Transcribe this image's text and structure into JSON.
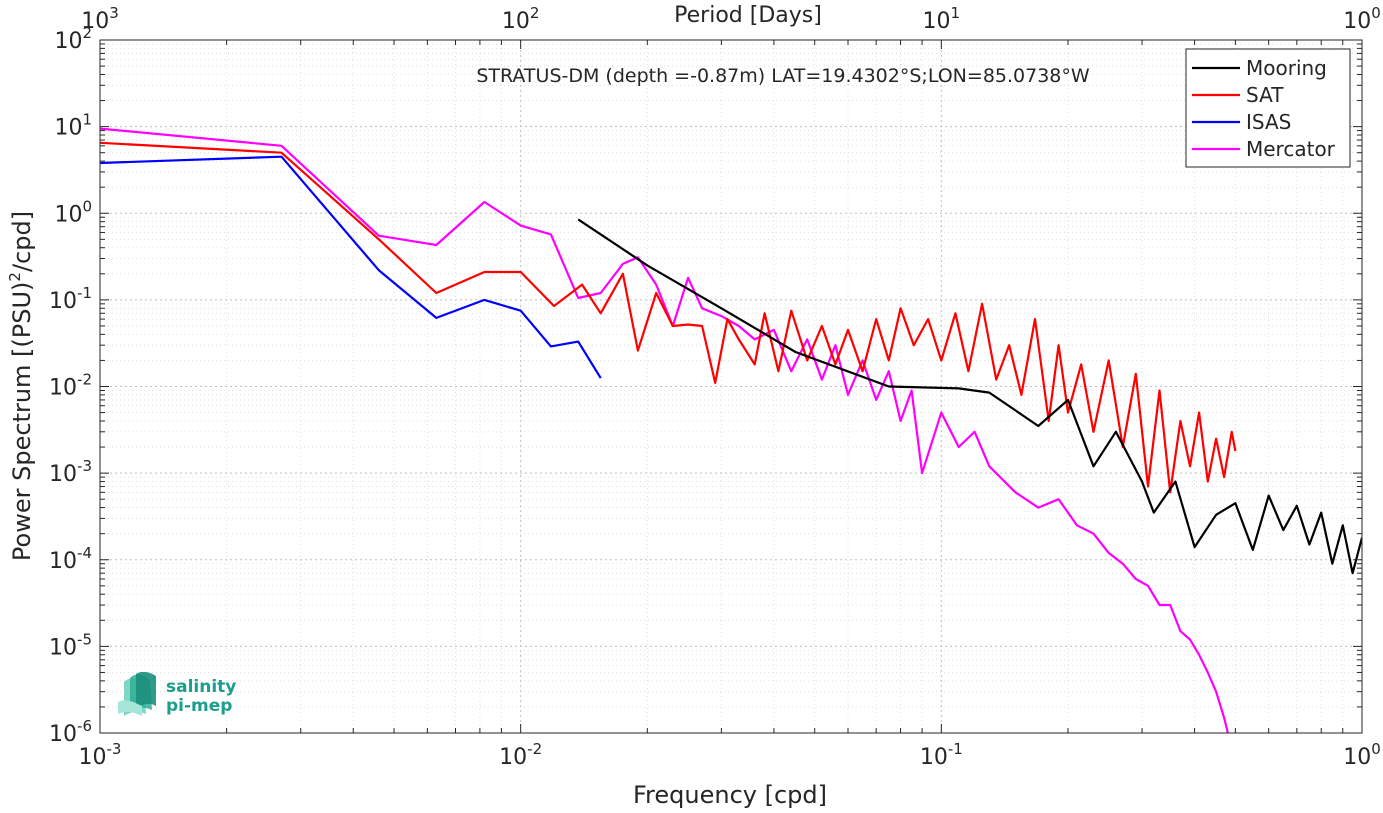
{
  "chart_data": {
    "type": "line",
    "title": "STRATUS-DM (depth =-0.87m) LAT=19.4302°S;LON=85.0738°W",
    "xlabel": "Frequency [cpd]",
    "ylabel_main": "Power Spectrum [(PSU)",
    "ylabel_sup": "2",
    "ylabel_tail": "/cpd]",
    "top_xlabel": "Period [Days]",
    "x_scale": "log",
    "y_scale": "log",
    "xlim": [
      0.001,
      1
    ],
    "ylim": [
      1e-06,
      100
    ],
    "grid": true,
    "legend_position": "top-right",
    "x_ticks": [
      {
        "value": 0.001,
        "base": "10",
        "exp": "-3"
      },
      {
        "value": 0.01,
        "base": "10",
        "exp": "-2"
      },
      {
        "value": 0.1,
        "base": "10",
        "exp": "-1"
      },
      {
        "value": 1,
        "base": "10",
        "exp": "0"
      }
    ],
    "top_ticks": [
      {
        "freq": 0.001,
        "base": "10",
        "exp": "3"
      },
      {
        "freq": 0.01,
        "base": "10",
        "exp": "2"
      },
      {
        "freq": 0.1,
        "base": "10",
        "exp": "1"
      },
      {
        "freq": 1,
        "base": "10",
        "exp": "0"
      }
    ],
    "y_ticks": [
      {
        "value": 100,
        "base": "10",
        "exp": "2"
      },
      {
        "value": 10,
        "base": "10",
        "exp": "1"
      },
      {
        "value": 1,
        "base": "10",
        "exp": "0"
      },
      {
        "value": 0.1,
        "base": "10",
        "exp": "-1"
      },
      {
        "value": 0.01,
        "base": "10",
        "exp": "-2"
      },
      {
        "value": 0.001,
        "base": "10",
        "exp": "-3"
      },
      {
        "value": 0.0001,
        "base": "10",
        "exp": "-4"
      },
      {
        "value": 1e-05,
        "base": "10",
        "exp": "-5"
      },
      {
        "value": 1e-06,
        "base": "10",
        "exp": "-6"
      }
    ],
    "series": [
      {
        "name": "Mooring",
        "color": "#000000",
        "x": [
          0.0137,
          0.02,
          0.03,
          0.045,
          0.075,
          0.11,
          0.13,
          0.17,
          0.2,
          0.23,
          0.26,
          0.3,
          0.32,
          0.36,
          0.4,
          0.45,
          0.5,
          0.55,
          0.6,
          0.65,
          0.7,
          0.75,
          0.8,
          0.85,
          0.9,
          0.95,
          1.0
        ],
        "y": [
          0.85,
          0.25,
          0.08,
          0.025,
          0.01,
          0.0095,
          0.0085,
          0.0035,
          0.007,
          0.0012,
          0.003,
          0.0008,
          0.00035,
          0.0008,
          0.00014,
          0.00033,
          0.00045,
          0.00013,
          0.00055,
          0.00022,
          0.00042,
          0.00015,
          0.00035,
          9e-05,
          0.00025,
          7e-05,
          0.00018
        ]
      },
      {
        "name": "SAT",
        "color": "#ff0000",
        "x": [
          0.001,
          0.0027,
          0.0046,
          0.0063,
          0.0082,
          0.01,
          0.012,
          0.014,
          0.0155,
          0.0175,
          0.019,
          0.021,
          0.023,
          0.025,
          0.027,
          0.029,
          0.031,
          0.033,
          0.036,
          0.038,
          0.041,
          0.044,
          0.048,
          0.052,
          0.056,
          0.06,
          0.065,
          0.07,
          0.075,
          0.08,
          0.086,
          0.093,
          0.1,
          0.108,
          0.116,
          0.125,
          0.135,
          0.145,
          0.155,
          0.167,
          0.18,
          0.19,
          0.2,
          0.215,
          0.23,
          0.25,
          0.27,
          0.29,
          0.31,
          0.33,
          0.35,
          0.37,
          0.39,
          0.41,
          0.43,
          0.45,
          0.47,
          0.49,
          0.5
        ],
        "y": [
          6.5,
          5.0,
          0.5,
          0.12,
          0.21,
          0.21,
          0.085,
          0.15,
          0.07,
          0.2,
          0.026,
          0.12,
          0.05,
          0.052,
          0.05,
          0.011,
          0.06,
          0.035,
          0.018,
          0.07,
          0.015,
          0.075,
          0.02,
          0.05,
          0.018,
          0.045,
          0.015,
          0.06,
          0.02,
          0.08,
          0.03,
          0.06,
          0.02,
          0.07,
          0.015,
          0.09,
          0.012,
          0.03,
          0.008,
          0.06,
          0.004,
          0.03,
          0.005,
          0.018,
          0.003,
          0.02,
          0.002,
          0.014,
          0.0007,
          0.009,
          0.0006,
          0.004,
          0.0012,
          0.005,
          0.0008,
          0.0025,
          0.0009,
          0.003,
          0.0018
        ]
      },
      {
        "name": "ISAS",
        "color": "#0000ff",
        "x": [
          0.001,
          0.0027,
          0.0046,
          0.0063,
          0.0082,
          0.01,
          0.0118,
          0.0137,
          0.0155
        ],
        "y": [
          3.8,
          4.5,
          0.22,
          0.062,
          0.1,
          0.075,
          0.029,
          0.033,
          0.0125
        ]
      },
      {
        "name": "Mercator",
        "color": "#ff00ff",
        "x": [
          0.001,
          0.0027,
          0.0046,
          0.0063,
          0.0082,
          0.01,
          0.0118,
          0.0137,
          0.0155,
          0.0175,
          0.019,
          0.021,
          0.023,
          0.025,
          0.027,
          0.03,
          0.033,
          0.036,
          0.04,
          0.044,
          0.048,
          0.052,
          0.056,
          0.06,
          0.065,
          0.07,
          0.075,
          0.08,
          0.085,
          0.09,
          0.1,
          0.11,
          0.12,
          0.13,
          0.15,
          0.17,
          0.19,
          0.21,
          0.23,
          0.25,
          0.27,
          0.29,
          0.31,
          0.33,
          0.35,
          0.37,
          0.39,
          0.41,
          0.43,
          0.45,
          0.47,
          0.48
        ],
        "y": [
          9.5,
          6.0,
          0.55,
          0.43,
          1.35,
          0.72,
          0.57,
          0.105,
          0.12,
          0.26,
          0.31,
          0.15,
          0.05,
          0.18,
          0.08,
          0.065,
          0.05,
          0.035,
          0.045,
          0.015,
          0.035,
          0.012,
          0.03,
          0.008,
          0.02,
          0.007,
          0.015,
          0.004,
          0.009,
          0.001,
          0.005,
          0.002,
          0.003,
          0.0012,
          0.0006,
          0.0004,
          0.0005,
          0.00025,
          0.0002,
          0.00012,
          9e-05,
          6e-05,
          5e-05,
          3e-05,
          3e-05,
          1.5e-05,
          1.2e-05,
          8e-06,
          5e-06,
          3e-06,
          1.5e-06,
          1e-06
        ]
      }
    ]
  },
  "logo": {
    "line1": "salinity",
    "line2": "pi-mep",
    "color": "#1b9e8b"
  }
}
